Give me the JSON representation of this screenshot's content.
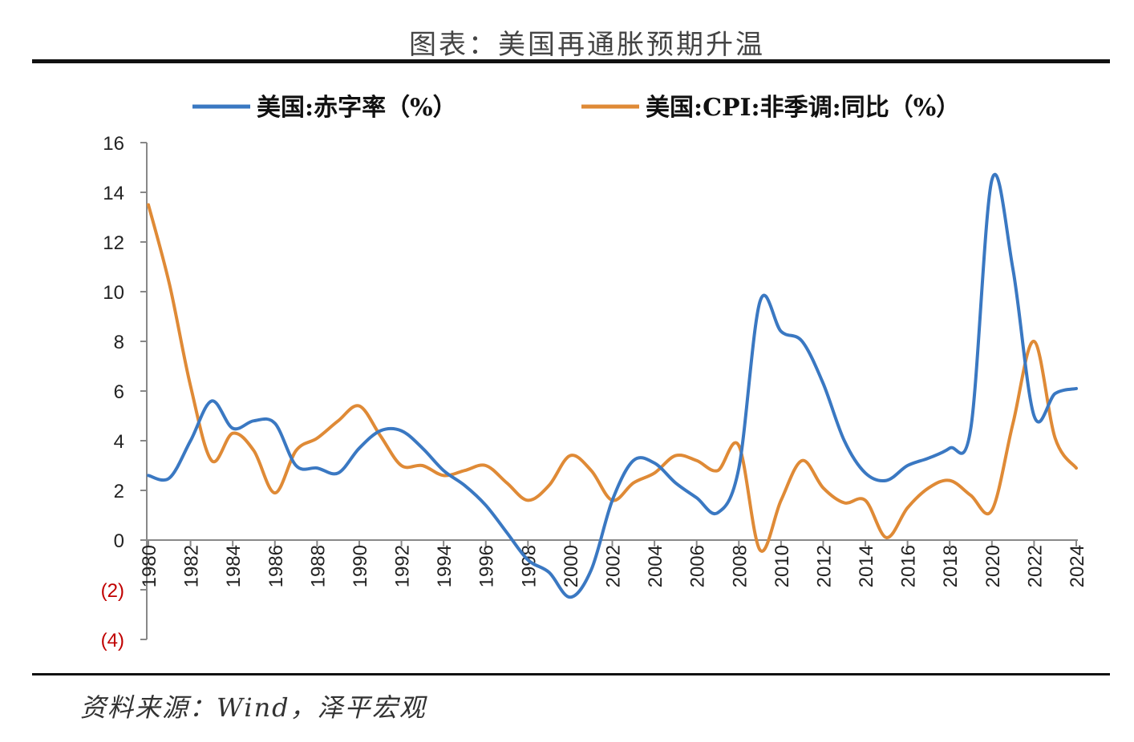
{
  "title": "图表：美国再通胀预期升温",
  "source": "资料来源：Wind，泽平宏观",
  "chart_data": {
    "type": "line",
    "title": "图表：美国再通胀预期升温",
    "xlabel": "",
    "ylabel": "",
    "ylim": [
      -4,
      16
    ],
    "xlim": [
      1980,
      2024
    ],
    "y_ticks": [
      16,
      14,
      12,
      10,
      8,
      6,
      4,
      2,
      0,
      -2,
      -4
    ],
    "y_tick_labels": [
      "16",
      "14",
      "12",
      "10",
      "8",
      "6",
      "4",
      "2",
      "0",
      "(2)",
      "(4)"
    ],
    "x_ticks": [
      1980,
      1982,
      1984,
      1986,
      1988,
      1990,
      1992,
      1994,
      1996,
      1998,
      2000,
      2002,
      2004,
      2006,
      2008,
      2010,
      2012,
      2014,
      2016,
      2018,
      2020,
      2022,
      2024
    ],
    "x_tick_labels": [
      "1980",
      "1982",
      "1984",
      "1986",
      "1988",
      "1990",
      "1992",
      "1994",
      "1996",
      "1998",
      "2000",
      "2002",
      "2004",
      "2006",
      "2008",
      "2010",
      "2012",
      "2014",
      "2016",
      "2018",
      "2020",
      "2022",
      "2024"
    ],
    "legend_position": "top",
    "grid": false,
    "series": [
      {
        "name": "美国:赤字率（%）",
        "color": "#3a78c2",
        "x": [
          1980,
          1981,
          1982,
          1983,
          1984,
          1985,
          1986,
          1987,
          1988,
          1989,
          1990,
          1991,
          1992,
          1993,
          1994,
          1995,
          1996,
          1997,
          1998,
          1999,
          2000,
          2001,
          2002,
          2003,
          2004,
          2005,
          2006,
          2007,
          2008,
          2009,
          2010,
          2011,
          2012,
          2013,
          2014,
          2015,
          2016,
          2017,
          2018,
          2019,
          2020,
          2021,
          2022,
          2023,
          2024
        ],
        "y": [
          2.6,
          2.5,
          4.0,
          5.6,
          4.5,
          4.8,
          4.7,
          3.0,
          2.9,
          2.7,
          3.7,
          4.4,
          4.4,
          3.7,
          2.8,
          2.2,
          1.4,
          0.3,
          -0.8,
          -1.3,
          -2.3,
          -1.2,
          1.6,
          3.2,
          3.1,
          2.3,
          1.7,
          1.1,
          2.9,
          9.6,
          8.4,
          8.0,
          6.3,
          4.0,
          2.7,
          2.4,
          3.0,
          3.3,
          3.7,
          4.5,
          14.5,
          10.9,
          5.0,
          5.9,
          6.1
        ]
      },
      {
        "name": "美国:CPI:非季调:同比（%）",
        "color": "#df8a36",
        "x": [
          1980,
          1981,
          1982,
          1983,
          1984,
          1985,
          1986,
          1987,
          1988,
          1989,
          1990,
          1991,
          1992,
          1993,
          1994,
          1995,
          1996,
          1997,
          1998,
          1999,
          2000,
          2001,
          2002,
          2003,
          2004,
          2005,
          2006,
          2007,
          2008,
          2009,
          2010,
          2011,
          2012,
          2013,
          2014,
          2015,
          2016,
          2017,
          2018,
          2019,
          2020,
          2021,
          2022,
          2023,
          2024
        ],
        "y": [
          13.5,
          10.3,
          6.2,
          3.2,
          4.3,
          3.6,
          1.9,
          3.6,
          4.1,
          4.8,
          5.4,
          4.2,
          3.0,
          3.0,
          2.6,
          2.8,
          3.0,
          2.3,
          1.6,
          2.2,
          3.4,
          2.8,
          1.6,
          2.3,
          2.7,
          3.4,
          3.2,
          2.8,
          3.8,
          -0.4,
          1.6,
          3.2,
          2.1,
          1.5,
          1.6,
          0.1,
          1.3,
          2.1,
          2.4,
          1.8,
          1.2,
          4.7,
          8.0,
          4.1,
          2.9
        ]
      }
    ]
  }
}
